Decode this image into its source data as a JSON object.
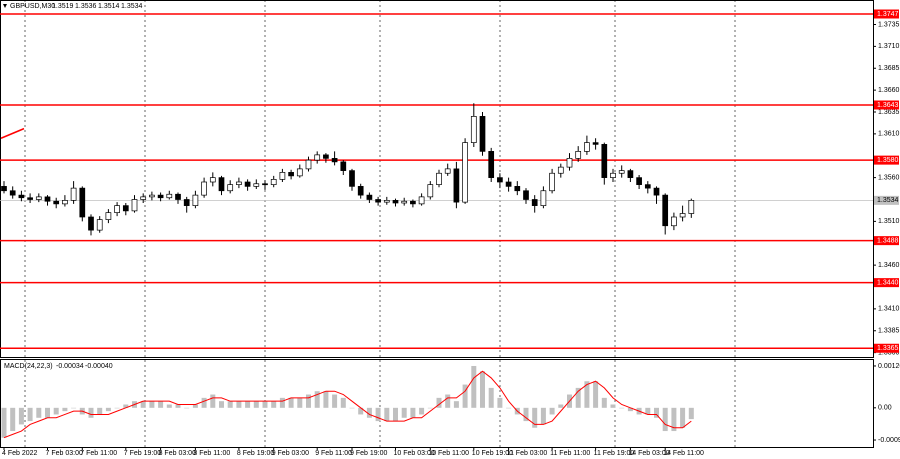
{
  "chart_data": {
    "type": "candlestick",
    "title": "GBPUSD,M30",
    "categories": [
      "4 Feb 2022",
      null,
      null,
      null,
      null,
      "7 Feb 03:00",
      null,
      null,
      null,
      "7 Feb 11:00",
      null,
      null,
      null,
      null,
      "7 Feb 19:00",
      null,
      null,
      null,
      "8 Feb 03:00",
      null,
      null,
      null,
      "8 Feb 11:00",
      null,
      null,
      null,
      null,
      "8 Feb 19:00",
      null,
      null,
      null,
      "9 Feb 03:00",
      null,
      null,
      null,
      null,
      "9 Feb 11:00",
      null,
      null,
      null,
      "9 Feb 19:00",
      null,
      null,
      null,
      null,
      "10 Feb 03:00",
      null,
      null,
      null,
      "10 Feb 11:00",
      null,
      null,
      null,
      null,
      "10 Feb 19:00",
      null,
      null,
      null,
      "11 Feb 03:00",
      null,
      null,
      null,
      null,
      "11 Feb 11:00",
      null,
      null,
      null,
      null,
      "11 Feb 19:00",
      null,
      null,
      null,
      "14 Feb 03:00",
      null,
      null,
      null,
      "14 Feb 11:00",
      null,
      null,
      null
    ],
    "ohlc": [
      [
        1.355,
        1.3556,
        1.3542,
        1.3545
      ],
      [
        1.3545,
        1.355,
        1.3536,
        1.354
      ],
      [
        1.354,
        1.3545,
        1.3533,
        1.3537
      ],
      [
        1.3537,
        1.3542,
        1.3531,
        1.3535
      ],
      [
        1.3535,
        1.3542,
        1.3532,
        1.3538
      ],
      [
        1.3538,
        1.354,
        1.3528,
        1.3533
      ],
      [
        1.3533,
        1.3537,
        1.3525,
        1.353
      ],
      [
        1.353,
        1.354,
        1.3527,
        1.3534
      ],
      [
        1.3534,
        1.3556,
        1.353,
        1.3548
      ],
      [
        1.3548,
        1.355,
        1.351,
        1.3515
      ],
      [
        1.3515,
        1.3518,
        1.3494,
        1.35
      ],
      [
        1.35,
        1.3516,
        1.3497,
        1.3512
      ],
      [
        1.3512,
        1.3524,
        1.3508,
        1.352
      ],
      [
        1.352,
        1.3532,
        1.3516,
        1.3528
      ],
      [
        1.3528,
        1.3531,
        1.3517,
        1.3522
      ],
      [
        1.3522,
        1.354,
        1.352,
        1.3535
      ],
      [
        1.3535,
        1.3542,
        1.3531,
        1.3538
      ],
      [
        1.3538,
        1.3544,
        1.3534,
        1.354
      ],
      [
        1.354,
        1.3543,
        1.3533,
        1.3537
      ],
      [
        1.3537,
        1.3545,
        1.3535,
        1.3541
      ],
      [
        1.3541,
        1.3543,
        1.353,
        1.3535
      ],
      [
        1.3535,
        1.3538,
        1.352,
        1.3528
      ],
      [
        1.3528,
        1.3545,
        1.3525,
        1.354
      ],
      [
        1.354,
        1.356,
        1.3537,
        1.3555
      ],
      [
        1.3555,
        1.3566,
        1.355,
        1.356
      ],
      [
        1.356,
        1.3562,
        1.354,
        1.3545
      ],
      [
        1.3545,
        1.3557,
        1.3542,
        1.3552
      ],
      [
        1.3552,
        1.356,
        1.3548,
        1.3555
      ],
      [
        1.3555,
        1.3558,
        1.3545,
        1.355
      ],
      [
        1.355,
        1.3558,
        1.3547,
        1.3553
      ],
      [
        1.3553,
        1.3557,
        1.3546,
        1.3552
      ],
      [
        1.3552,
        1.3562,
        1.3549,
        1.3558
      ],
      [
        1.3558,
        1.357,
        1.3555,
        1.3566
      ],
      [
        1.3566,
        1.3569,
        1.3558,
        1.3562
      ],
      [
        1.3562,
        1.3575,
        1.356,
        1.357
      ],
      [
        1.357,
        1.3584,
        1.3567,
        1.358
      ],
      [
        1.358,
        1.359,
        1.3576,
        1.3586
      ],
      [
        1.3586,
        1.3588,
        1.3577,
        1.3582
      ],
      [
        1.3582,
        1.359,
        1.3574,
        1.3578
      ],
      [
        1.3578,
        1.358,
        1.3563,
        1.3568
      ],
      [
        1.3568,
        1.357,
        1.3545,
        1.355
      ],
      [
        1.355,
        1.3553,
        1.3536,
        1.354
      ],
      [
        1.354,
        1.3543,
        1.3531,
        1.3535
      ],
      [
        1.3535,
        1.3538,
        1.3528,
        1.3532
      ],
      [
        1.3532,
        1.3538,
        1.3529,
        1.3534
      ],
      [
        1.3534,
        1.3536,
        1.3527,
        1.3531
      ],
      [
        1.3531,
        1.3537,
        1.3528,
        1.3533
      ],
      [
        1.3533,
        1.3535,
        1.3526,
        1.353
      ],
      [
        1.353,
        1.3542,
        1.3528,
        1.3538
      ],
      [
        1.3538,
        1.3556,
        1.3535,
        1.3552
      ],
      [
        1.3552,
        1.3569,
        1.3549,
        1.3565
      ],
      [
        1.3565,
        1.3576,
        1.3562,
        1.357
      ],
      [
        1.357,
        1.3578,
        1.3525,
        1.3532
      ],
      [
        1.3532,
        1.3605,
        1.353,
        1.36
      ],
      [
        1.36,
        1.3645,
        1.3595,
        1.363
      ],
      [
        1.363,
        1.3635,
        1.3585,
        1.359
      ],
      [
        1.359,
        1.3594,
        1.3555,
        1.356
      ],
      [
        1.356,
        1.3565,
        1.3548,
        1.3555
      ],
      [
        1.3555,
        1.356,
        1.3544,
        1.355
      ],
      [
        1.355,
        1.3556,
        1.354,
        1.3545
      ],
      [
        1.3545,
        1.3548,
        1.353,
        1.3535
      ],
      [
        1.3535,
        1.354,
        1.352,
        1.3528
      ],
      [
        1.3528,
        1.355,
        1.3525,
        1.3545
      ],
      [
        1.3545,
        1.357,
        1.3542,
        1.3565
      ],
      [
        1.3565,
        1.3576,
        1.356,
        1.3572
      ],
      [
        1.3572,
        1.3588,
        1.3568,
        1.3582
      ],
      [
        1.3582,
        1.3596,
        1.3578,
        1.359
      ],
      [
        1.359,
        1.3608,
        1.3586,
        1.36
      ],
      [
        1.36,
        1.3605,
        1.3592,
        1.3598
      ],
      [
        1.3598,
        1.36,
        1.3552,
        1.356
      ],
      [
        1.356,
        1.357,
        1.3555,
        1.3565
      ],
      [
        1.3565,
        1.3574,
        1.356,
        1.3568
      ],
      [
        1.3568,
        1.357,
        1.3555,
        1.356
      ],
      [
        1.356,
        1.3563,
        1.3547,
        1.3552
      ],
      [
        1.3552,
        1.3556,
        1.3542,
        1.3548
      ],
      [
        1.3548,
        1.355,
        1.353,
        1.354
      ],
      [
        1.354,
        1.3542,
        1.3495,
        1.3505
      ],
      [
        1.3505,
        1.352,
        1.35,
        1.3515
      ],
      [
        1.3515,
        1.3528,
        1.351,
        1.3519
      ],
      [
        1.3519,
        1.3536,
        1.3514,
        1.3534
      ]
    ],
    "up_color": "#ffffff",
    "down_color": "#000000",
    "ylim": [
      1.3355,
      1.3763
    ],
    "yticks": [
      1.3735,
      {
        "value": 1.371,
        "label": "1.3710"
      },
      1.3685,
      {
        "value": 1.366,
        "label": "1.3660"
      },
      1.3635,
      {
        "value": 1.361,
        "label": "1.3610"
      },
      {
        "value": 1.356,
        "label": "1.3560"
      },
      {
        "value": 1.351,
        "label": "1.3510"
      },
      {
        "value": 1.346,
        "label": "1.3460"
      },
      {
        "value": 1.341,
        "label": "1.3410"
      },
      1.3385,
      {
        "value": 1.336,
        "label": "1.3360"
      }
    ],
    "levels": [
      1.3747,
      1.3643,
      {
        "value": 1.358,
        "label": "1.3580"
      },
      1.3488,
      {
        "value": 1.344,
        "label": "1.3440"
      },
      1.3365
    ],
    "level_color": "#ff0000",
    "trendline": [
      1.3605,
      1.3616
    ],
    "macd": {
      "title": "MACD(24,22,3)",
      "color": "#c0c0c0",
      "values": [
        -0.0009,
        -0.0007,
        -0.0005,
        -0.0004,
        -0.0003,
        -0.0003,
        -0.0002,
        -0.0001,
        0,
        -0.0002,
        -0.0003,
        -0.0002,
        -0.0001,
        0,
        0.0001,
        0.0002,
        0.0002,
        0.0002,
        0.0002,
        0.0001,
        0.0001,
        0,
        0.0001,
        0.0003,
        0.0004,
        0.0002,
        0.0002,
        0.0002,
        0.0002,
        0.0002,
        0.0002,
        0.0002,
        0.0003,
        0.0003,
        0.0003,
        0.0004,
        0.0005,
        0.0005,
        0.0004,
        0.0003,
        0,
        -0.0002,
        -0.0003,
        -0.0004,
        -0.0004,
        -0.0004,
        -0.0003,
        -0.0003,
        -0.0002,
        0,
        0.0003,
        0.0004,
        0.0002,
        0.0007,
        0.00126,
        0.0011,
        0.0006,
        0.0003,
        0,
        -0.0002,
        -0.0004,
        -0.0006,
        -0.0005,
        -0.0002,
        0.0001,
        0.0004,
        0.0006,
        0.0008,
        0.0008,
        0.0003,
        0.0001,
        0,
        -0.0001,
        -0.0002,
        -0.0002,
        -0.0003,
        -0.0007,
        -0.0007,
        -0.0006,
        -0.00034
      ],
      "signal": {
        "color": "#ff0000",
        "values": [
          -0.0009,
          -0.0008,
          -0.0007,
          -0.0005,
          -0.0004,
          -0.0003,
          -0.0003,
          -0.0002,
          -0.0001,
          -0.0001,
          -0.0002,
          -0.0002,
          -0.0002,
          -0.0001,
          0,
          0.0001,
          0.0002,
          0.0002,
          0.0002,
          0.0002,
          0.0001,
          0.0001,
          0.0001,
          0.0002,
          0.0003,
          0.0003,
          0.0002,
          0.0002,
          0.0002,
          0.0002,
          0.0002,
          0.0002,
          0.0002,
          0.0003,
          0.0003,
          0.0003,
          0.0004,
          0.0005,
          0.0005,
          0.0004,
          0.0002,
          0,
          -0.0002,
          -0.0003,
          -0.0004,
          -0.0004,
          -0.0004,
          -0.0003,
          -0.0003,
          -0.0001,
          0.0001,
          0.0003,
          0.0003,
          0.0005,
          0.0009,
          0.0011,
          0.0009,
          0.0006,
          0.0002,
          -0.0001,
          -0.0003,
          -0.0005,
          -0.0005,
          -0.0004,
          -0.0001,
          0.0002,
          0.0005,
          0.0007,
          0.0008,
          0.0006,
          0.0003,
          0.0001,
          0,
          -0.0001,
          -0.0002,
          -0.0002,
          -0.0005,
          -0.0006,
          -0.0006,
          -0.0004
        ],
        "value_labels": [
          null,
          null,
          null,
          null,
          null,
          null,
          null,
          null,
          null,
          null,
          null,
          null,
          null,
          null,
          null,
          null,
          null,
          null,
          null,
          null,
          null,
          null,
          null,
          null,
          null,
          null,
          null,
          null,
          null,
          null,
          null,
          null,
          null,
          null,
          null,
          null,
          null,
          null,
          null,
          null,
          null,
          null,
          null,
          null,
          null,
          null,
          null,
          null,
          null,
          null,
          null,
          null,
          null,
          null,
          null,
          null,
          null,
          null,
          null,
          null,
          null,
          null,
          null,
          null,
          null,
          null,
          null,
          null,
          null,
          null,
          null,
          null,
          null,
          null,
          null,
          null,
          null,
          null,
          null,
          "-0.00040"
        ]
      },
      "ylim": [
        -0.00118,
        0.00147
      ],
      "yticks": [
        0.00126,
        {
          "value": 0,
          "label": "0.00"
        },
        -0.00097
      ]
    }
  }
}
